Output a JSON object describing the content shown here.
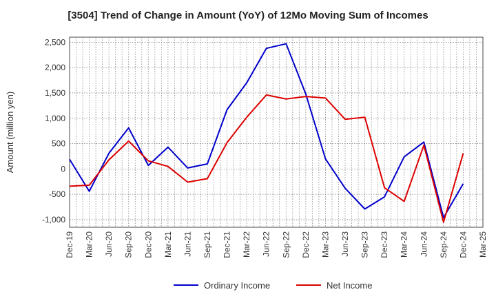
{
  "chart_data": {
    "type": "line",
    "title": "[3504]  Trend of Change in Amount (YoY) of 12Mo Moving Sum of Incomes",
    "xlabel": "",
    "ylabel": "Amount (million yen)",
    "ylim": [
      -1150,
      2600
    ],
    "yticks": [
      2500,
      2000,
      1500,
      1000,
      500,
      0,
      -500,
      -1000
    ],
    "ytick_labels": [
      "2,500",
      "2,000",
      "1,500",
      "1,000",
      "500",
      "0",
      "-500",
      "-1,000"
    ],
    "x": [
      "Dec-19",
      "Mar-20",
      "Jun-20",
      "Sep-20",
      "Dec-20",
      "Mar-21",
      "Jun-21",
      "Sep-21",
      "Dec-21",
      "Mar-22",
      "Jun-22",
      "Sep-22",
      "Dec-22",
      "Mar-23",
      "Jun-23",
      "Sep-23",
      "Dec-23",
      "Mar-24",
      "Jun-24",
      "Sep-24",
      "Dec-24",
      "Mar-25"
    ],
    "grid": true,
    "legend_position": "bottom",
    "series": [
      {
        "name": "Ordinary Income",
        "color": "#0000cc",
        "values": [
          190,
          -440,
          310,
          810,
          70,
          430,
          20,
          100,
          1170,
          1700,
          2380,
          2470,
          1480,
          200,
          -380,
          -790,
          -550,
          240,
          530,
          -960,
          -290,
          null
        ]
      },
      {
        "name": "Net Income",
        "color": "#dd0000",
        "values": [
          -340,
          -320,
          180,
          550,
          160,
          50,
          -260,
          -190,
          520,
          1020,
          1460,
          1380,
          1430,
          1400,
          980,
          1020,
          -370,
          -640,
          470,
          -1050,
          310,
          null
        ]
      }
    ]
  }
}
